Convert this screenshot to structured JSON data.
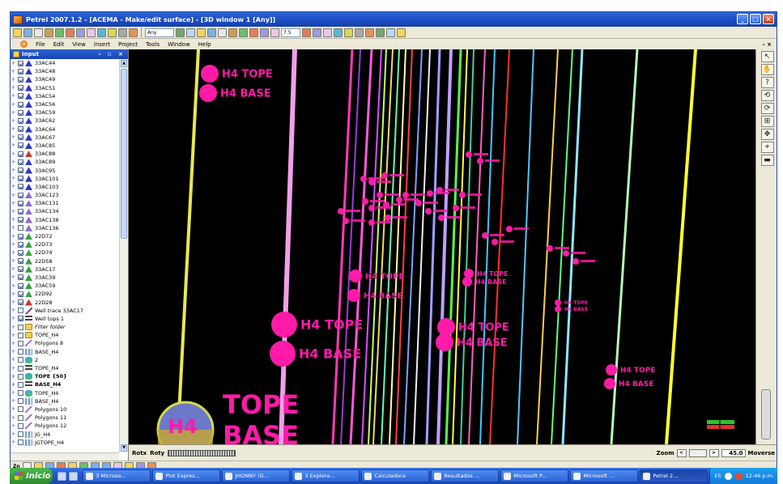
{
  "window": {
    "title": "Petrel 2007.1.2 - [ACEMA - Make/edit surface] - [3D window 1 [Any]]",
    "controls": [
      "_",
      "□",
      "×"
    ]
  },
  "toolbar": {
    "combo1": "Any",
    "combo2": "7.5"
  },
  "menubar": {
    "items": [
      "File",
      "Edit",
      "View",
      "Insert",
      "Project",
      "Tools",
      "Window",
      "Help"
    ],
    "right": "- ×"
  },
  "input_panel": {
    "title": "Input",
    "controls": "- ▫ ×",
    "items": [
      {
        "label": "33AC44",
        "type": "well",
        "color": "#2a3ac8",
        "checked": true
      },
      {
        "label": "33AC48",
        "type": "well",
        "color": "#2a3ac8",
        "checked": true
      },
      {
        "label": "33AC49",
        "type": "well",
        "color": "#2a3ac8",
        "checked": true
      },
      {
        "label": "33AC51",
        "type": "well",
        "color": "#2a3ac8",
        "checked": true
      },
      {
        "label": "33AC54",
        "type": "well",
        "color": "#2a3ac8",
        "checked": true
      },
      {
        "label": "33AC56",
        "type": "well",
        "color": "#2a3ac8",
        "checked": true
      },
      {
        "label": "33AC59",
        "type": "well",
        "color": "#2a3ac8",
        "checked": true
      },
      {
        "label": "33AC62",
        "type": "well",
        "color": "#2a3ac8",
        "checked": true
      },
      {
        "label": "33AC64",
        "type": "well",
        "color": "#2a3ac8",
        "checked": true
      },
      {
        "label": "33AC67",
        "type": "well",
        "color": "#2a3ac8",
        "checked": true
      },
      {
        "label": "33AC85",
        "type": "well",
        "color": "#2a3ac8",
        "checked": true
      },
      {
        "label": "33AC88",
        "type": "well",
        "color": "#c83a2a",
        "checked": true
      },
      {
        "label": "33AC89",
        "type": "well",
        "color": "#2a3ac8",
        "checked": true
      },
      {
        "label": "33AC95",
        "type": "well",
        "color": "#2a3ac8",
        "checked": true
      },
      {
        "label": "33AC101",
        "type": "well",
        "color": "#2a3ac8",
        "checked": true
      },
      {
        "label": "33AC103",
        "type": "well",
        "color": "#2a3ac8",
        "checked": true
      },
      {
        "label": "33AC123",
        "type": "well",
        "color": "#8a6ad0",
        "checked": true
      },
      {
        "label": "33AC131",
        "type": "well",
        "color": "#8a6ad0",
        "checked": true
      },
      {
        "label": "33AC134",
        "type": "well",
        "color": "#8a6ad0",
        "checked": true
      },
      {
        "label": "33AC138",
        "type": "well",
        "color": "#8a6ad0",
        "checked": true
      },
      {
        "label": "33AC136",
        "type": "well",
        "color": "#8a6ad0",
        "checked": false
      },
      {
        "label": "22D72",
        "type": "well",
        "color": "#3aa03a",
        "checked": true
      },
      {
        "label": "22D73",
        "type": "well",
        "color": "#3aa03a",
        "checked": true
      },
      {
        "label": "22D74",
        "type": "well",
        "color": "#3aa03a",
        "checked": true
      },
      {
        "label": "22D58",
        "type": "well",
        "color": "#3aa03a",
        "checked": true
      },
      {
        "label": "33AC17",
        "type": "well",
        "color": "#3aa03a",
        "checked": true
      },
      {
        "label": "33AC39",
        "type": "well",
        "color": "#3aa03a",
        "checked": true
      },
      {
        "label": "33AC59",
        "type": "well",
        "color": "#3aa03a",
        "checked": true
      },
      {
        "label": "22D92",
        "type": "well",
        "color": "#3aa03a",
        "checked": true
      },
      {
        "label": "22D28",
        "type": "well",
        "color": "#c83a2a",
        "checked": true
      },
      {
        "label": "Well trace 33AC17",
        "type": "trace",
        "color": "#6a2a9a",
        "checked": false
      },
      {
        "label": "Well tops 1",
        "type": "tops",
        "color": "#444444",
        "checked": true
      },
      {
        "label": "Filter folder",
        "type": "folder",
        "color": "#f2cf5b",
        "checked": false,
        "style": "italic"
      },
      {
        "label": "TOPE_H4",
        "type": "folder",
        "color": "#f2cf5b",
        "checked": false
      },
      {
        "label": "Polygons 8",
        "type": "poly",
        "color": "#8a6ad0",
        "checked": false
      },
      {
        "label": "BASE_H4",
        "type": "grid",
        "color": "#7aa0c8",
        "checked": false
      },
      {
        "label": "2",
        "type": "surf",
        "color": "#4aa0e0",
        "checked": false
      },
      {
        "label": "TOPE_H4",
        "type": "tops",
        "color": "#444444",
        "checked": false
      },
      {
        "label": "TOPE {50}",
        "type": "surf",
        "color": "#4aa0e0",
        "checked": false,
        "style": "bold"
      },
      {
        "label": "BASE_H4",
        "type": "tops",
        "color": "#444444",
        "checked": false,
        "style": "bold"
      },
      {
        "label": "TOPE_H4",
        "type": "surf",
        "color": "#4aa0e0",
        "checked": false
      },
      {
        "label": "BASE_H4",
        "type": "grid",
        "color": "#7aa0c8",
        "checked": false
      },
      {
        "label": "Polygons 10",
        "type": "poly",
        "color": "#8a6ad0",
        "checked": false
      },
      {
        "label": "Polygons 11",
        "type": "poly",
        "color": "#8a6ad0",
        "checked": false
      },
      {
        "label": "Polygons 12",
        "type": "poly",
        "color": "#8a6ad0",
        "checked": false
      },
      {
        "label": "JG_H4",
        "type": "grid",
        "color": "#7aa0c8",
        "checked": false
      },
      {
        "label": "JGTOPE_H4",
        "type": "grid",
        "color": "#7aa0c8",
        "checked": false
      }
    ]
  },
  "viewport": {
    "well_top_labels": [
      {
        "tope": "H4 TOPE",
        "base": "H4 BASE"
      },
      {
        "tope": "H4 TOPE",
        "base": "H4 BASE"
      },
      {
        "tope": "H4 TOPE",
        "base": "H4 BASE"
      },
      {
        "tope": "H4 TOPE",
        "base": "H4 BASE"
      },
      {
        "tope": "H4 TOPE",
        "base": "H4 BASE"
      },
      {
        "tope": "H4 TOPE",
        "base": "H4 BASE"
      },
      {
        "tope": "H4 TOPE",
        "base": "H4 BASE"
      }
    ],
    "big_labels": {
      "tope": "TOPE",
      "base": "BASE",
      "sphere": "H4"
    },
    "marker_color": "#ff1aa8"
  },
  "right_tools": [
    "↖",
    "✋",
    "?",
    "⟲",
    "⟳",
    "⊞",
    "✥",
    "⌖",
    "▬"
  ],
  "statusbar": {
    "rotx": "Rotx",
    "roty": "Roty",
    "zoom_label": "Zoom",
    "zoom_value": "45.0",
    "mode": "Moverse"
  },
  "bottom_strip": {
    "label": "Zn"
  },
  "taskbar": {
    "start": "Inicio",
    "tasks": [
      "3 Microso...",
      "Plot Expres...",
      "JHONNY (G...",
      "3 Explora...",
      "Calculadora",
      "Resultados ...",
      "Microsoft P...",
      "Microsoft ...",
      "Petrel 2..."
    ],
    "active_index": 8,
    "tray_lang": "ES",
    "clock": "12:46 p.m."
  }
}
